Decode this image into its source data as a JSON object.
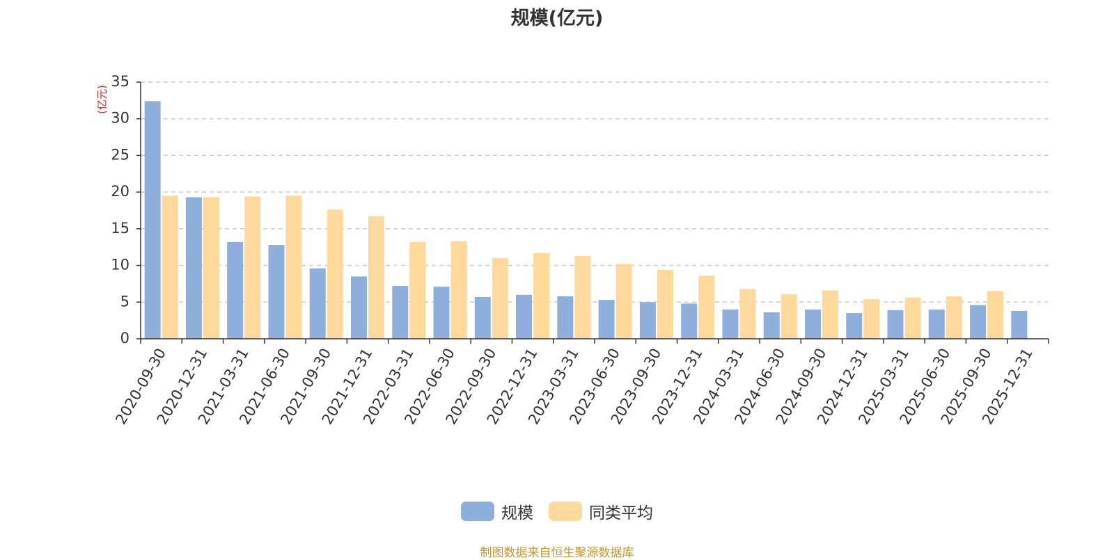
{
  "colors": {
    "scale": "#8eaedc",
    "avg": "#ffd99b",
    "unit": "#e8202a",
    "source": "#c8962a",
    "axis": "#333333",
    "grid": "#cccccc"
  },
  "chart_data": {
    "type": "bar",
    "title": "规模(亿元)",
    "y_unit_label": "(亿元)",
    "categories": [
      "2020-09-30",
      "2020-12-31",
      "2021-03-31",
      "2021-06-30",
      "2021-09-30",
      "2021-12-31",
      "2022-03-31",
      "2022-06-30",
      "2022-09-30",
      "2022-12-31",
      "2023-03-31",
      "2023-06-30",
      "2023-09-30",
      "2023-12-31",
      "2024-03-31",
      "2024-06-30",
      "2024-09-30",
      "2024-12-31",
      "2025-03-31",
      "2025-06-30",
      "2025-09-30",
      "2025-12-31"
    ],
    "series": [
      {
        "name": "规模",
        "values": [
          32.4,
          19.3,
          13.2,
          12.8,
          9.6,
          8.5,
          7.2,
          7.1,
          5.7,
          6.0,
          5.8,
          5.3,
          5.0,
          4.8,
          4.0,
          3.6,
          4.0,
          3.5,
          3.9,
          4.0,
          4.6,
          3.8
        ]
      },
      {
        "name": "同类平均",
        "values": [
          19.5,
          19.3,
          19.4,
          19.5,
          17.6,
          16.7,
          13.2,
          13.3,
          11.0,
          11.7,
          11.3,
          10.2,
          9.4,
          8.6,
          6.8,
          6.1,
          6.6,
          5.4,
          5.6,
          5.8,
          6.5,
          null
        ]
      }
    ],
    "ylim": [
      0,
      35
    ],
    "yticks": [
      0,
      5,
      10,
      15,
      20,
      25,
      30,
      35
    ],
    "grid": true,
    "legend_position": "bottom-center"
  },
  "footer": {
    "source_note": "制图数据来自恒生聚源数据库"
  }
}
